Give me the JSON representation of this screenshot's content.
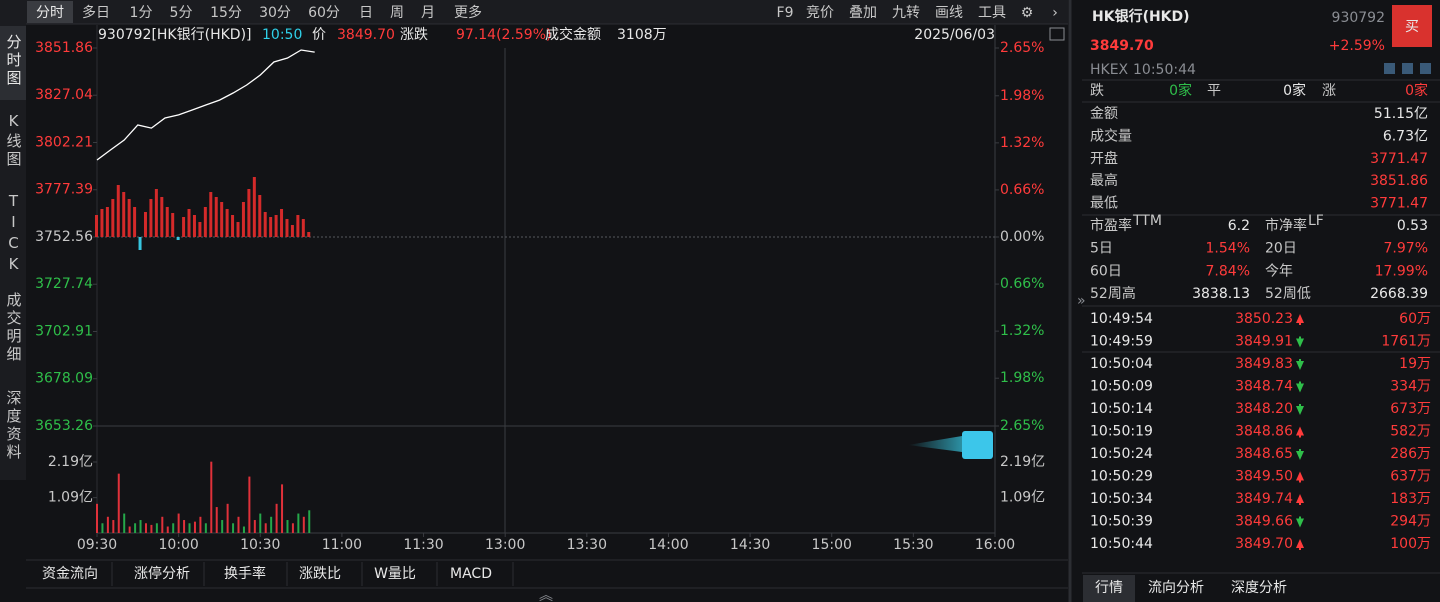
{
  "toolbar": {
    "periods": [
      "分时",
      "多日",
      "1分",
      "5分",
      "15分",
      "30分",
      "60分",
      "日",
      "周",
      "月",
      "更多"
    ],
    "tools": [
      "F9",
      "竞价",
      "叠加",
      "九转",
      "画线",
      "工具"
    ]
  },
  "side_tabs": [
    "分时图",
    "K线图",
    "TICK",
    "成交明细",
    "深度资料"
  ],
  "info": {
    "symbol": "930792[HK银行(HKD)]",
    "time": "10:50",
    "price_label": "价",
    "price": "3849.70",
    "change_label": "涨跌",
    "change": "97.14(2.59%)",
    "amount_label": "成交金额",
    "amount": "3108万",
    "date": "2025/06/03"
  },
  "chart_data": [
    {
      "type": "line",
      "xlim": [
        0,
        330
      ],
      "xticks": [
        {
          "value": 0,
          "label": "09:30"
        },
        {
          "value": 30,
          "label": "10:00"
        },
        {
          "value": 60,
          "label": "10:30"
        },
        {
          "value": 90,
          "label": "11:00"
        },
        {
          "value": 120,
          "label": "11:30"
        },
        {
          "value": 150,
          "label": "13:00"
        },
        {
          "value": 180,
          "label": "13:30"
        },
        {
          "value": 210,
          "label": "14:00"
        },
        {
          "value": 240,
          "label": "14:30"
        },
        {
          "value": 270,
          "label": "15:00"
        },
        {
          "value": 300,
          "label": "15:30"
        },
        {
          "value": 330,
          "label": "16:00"
        }
      ],
      "ylim": [
        3653.26,
        3851.86
      ],
      "yticks": [
        3851.86,
        3827.04,
        3802.21,
        3777.39,
        3752.56,
        3727.74,
        3702.91,
        3678.09,
        3653.26
      ],
      "y2lim": [
        -2.65,
        2.65
      ],
      "y2ticks": [
        {
          "value": 2.65,
          "label": "2.65%"
        },
        {
          "value": 1.98,
          "label": "1.98%"
        },
        {
          "value": 1.32,
          "label": "1.32%"
        },
        {
          "value": 0.66,
          "label": "0.66%"
        },
        {
          "value": 0,
          "label": "0.00%"
        },
        {
          "value": -0.66,
          "label": "0.66%"
        },
        {
          "value": -1.32,
          "label": "1.32%"
        },
        {
          "value": -1.98,
          "label": "1.98%"
        },
        {
          "value": -2.65,
          "label": "2.65%"
        }
      ],
      "up_color": "#ff3b3b",
      "flat_color": "#c8c8c8",
      "down_color": "#2fbf4a",
      "series": [
        {
          "type": "line",
          "color": "#ffffff",
          "x": [
            0,
            5,
            10,
            15,
            20,
            25,
            30,
            35,
            40,
            45,
            50,
            55,
            60,
            65,
            70,
            75,
            80
          ],
          "values": [
            3793.0,
            3798.3,
            3803.5,
            3811.4,
            3809.8,
            3815.1,
            3816.7,
            3819.3,
            3821.9,
            3824.5,
            3828.2,
            3832.4,
            3837.7,
            3844.5,
            3846.6,
            3850.8,
            3849.7
          ]
        },
        {
          "type": "bar",
          "color": "#d42a2a",
          "down_color": "#37c6e0",
          "x": [
            0,
            2,
            4,
            6,
            8,
            10,
            12,
            14,
            16,
            18,
            20,
            22,
            24,
            26,
            28,
            30,
            32,
            34,
            36,
            38,
            40,
            42,
            44,
            46,
            48,
            50,
            52,
            54,
            56,
            58,
            60,
            62,
            64,
            66,
            68,
            70,
            72,
            74,
            76,
            78
          ],
          "values": [
            3764.12,
            3767.27,
            3768.32,
            3772.53,
            3779.88,
            3776.2,
            3772.53,
            3768.32,
            3745.73,
            3765.7,
            3772.53,
            3777.78,
            3773.58,
            3768.32,
            3765.17,
            3750.98,
            3763.07,
            3767.27,
            3764.12,
            3760.44,
            3768.32,
            3776.2,
            3773.58,
            3770.95,
            3767.27,
            3764.12,
            3760.44,
            3770.95,
            3777.78,
            3784.08,
            3774.63,
            3765.7,
            3763.07,
            3764.12,
            3767.27,
            3762.02,
            3758.86,
            3764.12,
            3762.02,
            3755.19
          ]
        }
      ]
    },
    {
      "type": "bar",
      "xlim": [
        0,
        330
      ],
      "ylim": [
        0,
        3.3
      ],
      "yticks": [
        {
          "value": 2.19,
          "label": "2.19亿"
        },
        {
          "value": 1.09,
          "label": "1.09亿"
        }
      ],
      "x": [
        0,
        2,
        4,
        6,
        8,
        10,
        12,
        14,
        16,
        18,
        20,
        22,
        24,
        26,
        28,
        30,
        32,
        34,
        36,
        38,
        40,
        42,
        44,
        46,
        48,
        50,
        52,
        54,
        56,
        58,
        60,
        62,
        64,
        66,
        68,
        70,
        72,
        74,
        76,
        78
      ],
      "values": [
        0.9,
        0.3,
        0.5,
        0.4,
        1.83,
        0.6,
        0.2,
        0.3,
        0.4,
        0.3,
        0.25,
        0.3,
        0.5,
        0.2,
        0.3,
        0.6,
        0.4,
        0.3,
        0.35,
        0.5,
        0.3,
        2.2,
        0.8,
        0.4,
        0.9,
        0.3,
        0.5,
        0.2,
        1.74,
        0.4,
        0.6,
        0.3,
        0.5,
        0.9,
        1.5,
        0.4,
        0.3,
        0.6,
        0.5,
        0.7
      ],
      "colors": [
        "#e0313a",
        "#25a84a",
        "#e0313a",
        "#e0313a",
        "#e0313a",
        "#25a84a",
        "#e0313a",
        "#25a84a",
        "#25a84a",
        "#e0313a",
        "#e0313a",
        "#25a84a",
        "#e0313a",
        "#e0313a",
        "#25a84a",
        "#e0313a",
        "#e0313a",
        "#25a84a",
        "#e0313a",
        "#e0313a",
        "#25a84a",
        "#e0313a",
        "#e0313a",
        "#25a84a",
        "#e0313a",
        "#25a84a",
        "#e0313a",
        "#25a84a",
        "#e0313a",
        "#e0313a",
        "#25a84a",
        "#e0313a",
        "#25a84a",
        "#e0313a",
        "#e0313a",
        "#25a84a",
        "#e0313a",
        "#25a84a",
        "#e0313a",
        "#25a84a"
      ]
    }
  ],
  "indicator_tabs": [
    "资金流向",
    "涨停分析",
    "换手率",
    "涨跌比",
    "W量比",
    "MACD"
  ],
  "quote": {
    "name": "HK银行(HKD)",
    "code": "930792",
    "buy": "买",
    "price": "3849.70",
    "change_pct": "+2.59%",
    "market": "HKEX",
    "time": "10:50:44",
    "breadth": [
      {
        "label": "跌",
        "value": "0家",
        "color": "#2fbf4a"
      },
      {
        "label": "平",
        "value": "0家",
        "color": "#e8e8e8"
      },
      {
        "label": "涨",
        "value": "0家",
        "color": "#ff3b3b"
      }
    ],
    "stats": [
      {
        "label": "金额",
        "value": "51.15亿",
        "color": "#e8e8e8"
      },
      {
        "label": "成交量",
        "value": "6.73亿",
        "color": "#e8e8e8"
      },
      {
        "label": "开盘",
        "value": "3771.47",
        "color": "#ff3b3b"
      },
      {
        "label": "最高",
        "value": "3851.86",
        "color": "#ff3b3b"
      },
      {
        "label": "最低",
        "value": "3771.47",
        "color": "#ff3b3b"
      }
    ],
    "metrics": [
      {
        "label": "市盈率",
        "sup": "TTM",
        "value": "6.2",
        "color": "#e8e8e8"
      },
      {
        "label": "市净率",
        "sup": "LF",
        "value": "0.53",
        "color": "#e8e8e8"
      },
      {
        "label": "5日",
        "value": "1.54%",
        "color": "#ff3b3b"
      },
      {
        "label": "20日",
        "value": "7.97%",
        "color": "#ff3b3b"
      },
      {
        "label": "60日",
        "value": "7.84%",
        "color": "#ff3b3b"
      },
      {
        "label": "今年",
        "value": "17.99%",
        "color": "#ff3b3b"
      },
      {
        "label": "52周高",
        "value": "3838.13",
        "color": "#e8e8e8"
      },
      {
        "label": "52周低",
        "value": "2668.39",
        "color": "#e8e8e8"
      }
    ]
  },
  "trades": [
    {
      "time": "10:49:54",
      "price": "3850.23",
      "dir": "up",
      "volume": "60万"
    },
    {
      "time": "10:49:59",
      "price": "3849.91",
      "dir": "down",
      "volume": "1761万"
    },
    {
      "time": "10:50:04",
      "price": "3849.83",
      "dir": "down",
      "volume": "19万"
    },
    {
      "time": "10:50:09",
      "price": "3848.74",
      "dir": "down",
      "volume": "334万"
    },
    {
      "time": "10:50:14",
      "price": "3848.20",
      "dir": "down",
      "volume": "673万"
    },
    {
      "time": "10:50:19",
      "price": "3848.86",
      "dir": "up",
      "volume": "582万"
    },
    {
      "time": "10:50:24",
      "price": "3848.65",
      "dir": "down",
      "volume": "286万"
    },
    {
      "time": "10:50:29",
      "price": "3849.50",
      "dir": "up",
      "volume": "637万"
    },
    {
      "time": "10:50:34",
      "price": "3849.74",
      "dir": "up",
      "volume": "183万"
    },
    {
      "time": "10:50:39",
      "price": "3849.66",
      "dir": "down",
      "volume": "294万"
    },
    {
      "time": "10:50:44",
      "price": "3849.70",
      "dir": "up",
      "volume": "100万"
    }
  ],
  "bottom_tabs": [
    "行情",
    "流向分析",
    "深度分析"
  ]
}
